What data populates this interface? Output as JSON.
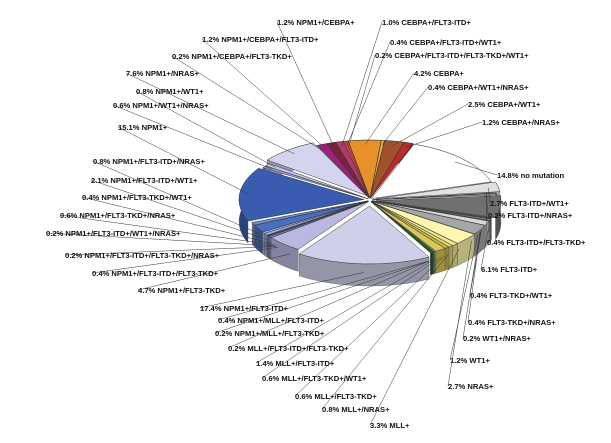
{
  "chart_data": {
    "type": "pie",
    "title": "",
    "slices": [
      {
        "label": "1.2% NPM1+/CEBPA+",
        "value": 1.2,
        "color": "#7a2238"
      },
      {
        "label": "1.0% CEBPA+/FLT3-ITD+",
        "value": 1.0,
        "color": "#b03a6a"
      },
      {
        "label": "0.4% CEBPA+/FLT3-ITD+/WT1+",
        "value": 0.4,
        "color": "#d23f4f"
      },
      {
        "label": "0.2% CEBPA+/FLT3-ITD+/FLT3-TKD+/WT1+",
        "value": 0.2,
        "color": "#e86a2e"
      },
      {
        "label": "4.2% CEBPA+",
        "value": 4.2,
        "color": "#e8902a"
      },
      {
        "label": "0.4% CEBPA+/WT1+/NRAS+",
        "value": 0.4,
        "color": "#f2b03a"
      },
      {
        "label": "2.5% CEBPA+/WT1+",
        "value": 2.5,
        "color": "#a0522d"
      },
      {
        "label": "1.2% CEBPA+/NRAS+",
        "value": 1.2,
        "color": "#c0282a"
      },
      {
        "label": "14.8% no mutation",
        "value": 14.8,
        "color": "#ffffff"
      },
      {
        "label": "2.7% FLT3-ITD+/WT1+",
        "value": 2.7,
        "color": "#e0e0e0"
      },
      {
        "label": "0.2% FLT3-ITD+/NRAS+",
        "value": 0.2,
        "color": "#bdbdbd"
      },
      {
        "label": "0.4% FLT3-ITD+/FLT3-TKD+",
        "value": 0.4,
        "color": "#9e9e9e"
      },
      {
        "label": "6.1% FLT3-ITD+",
        "value": 6.1,
        "color": "#707070"
      },
      {
        "label": "0.4% FLT3-TKD+/WT1+",
        "value": 0.4,
        "color": "#4a4a4a"
      },
      {
        "label": "0.4% FLT3-TKD+/NRAS+",
        "value": 0.4,
        "color": "#8c8c8c"
      },
      {
        "label": "0.2% WT1+/NRAS+",
        "value": 0.2,
        "color": "#b5b5b5"
      },
      {
        "label": "1.2% WT1+",
        "value": 1.2,
        "color": "#d9d9d9"
      },
      {
        "label": "2.7% NRAS+",
        "value": 2.7,
        "color": "#a6a6a6"
      },
      {
        "label": "3.3% MLL+",
        "value": 3.3,
        "color": "#fff7b0"
      },
      {
        "label": "0.8% MLL+/NRAS+",
        "value": 0.8,
        "color": "#f0e68c"
      },
      {
        "label": "0.6% MLL+/FLT3-TKD+",
        "value": 0.6,
        "color": "#e6d96a"
      },
      {
        "label": "0.6% MLL+/FLT3-TKD+/WT1+",
        "value": 0.6,
        "color": "#c8b84a"
      },
      {
        "label": "1.4% MLL+/FLT3-ITD+",
        "value": 1.4,
        "color": "#dcc85a"
      },
      {
        "label": "0.2% MLL+/FLT3-ITD+/FLT3-TKD+",
        "value": 0.2,
        "color": "#8fbc5a"
      },
      {
        "label": "0.2% NPM1+/MLL+/FLT3-TKD+",
        "value": 0.2,
        "color": "#2e7d32"
      },
      {
        "label": "0.4% NPM1+/MLL+/FLT3-ITD+",
        "value": 0.4,
        "color": "#1b5e20"
      },
      {
        "label": "17.4% NPM1+/FLT3-ITD+",
        "value": 17.4,
        "color": "#cfcfea"
      },
      {
        "label": "4.7% NPM1+/FLT3-TKD+",
        "value": 4.7,
        "color": "#b8b8e0"
      },
      {
        "label": "0.4% NPM1+/FLT3-ITD+/FLT3-TKD+",
        "value": 0.4,
        "color": "#8080c0"
      },
      {
        "label": "0.2% NPM1+/FLT3-ITD+/FLT3-TKD+/NRAS+",
        "value": 0.2,
        "color": "#6a6ab0"
      },
      {
        "label": "0.2% NPM1+/FLT3-ITD+/WT1+/NRAS+",
        "value": 0.2,
        "color": "#5060a8"
      },
      {
        "label": "0.6% NPM1+/FLT3-TKD+/NRAS+",
        "value": 0.6,
        "color": "#9ab0e0"
      },
      {
        "label": "0.4% NPM1+/FLT3-TKD+/WT1+",
        "value": 0.4,
        "color": "#a8c0f0"
      },
      {
        "label": "2.1% NPM1+/FLT3-ITD+/WT1+",
        "value": 2.1,
        "color": "#4a6ec0"
      },
      {
        "label": "0.8% NPM1+/FLT3-ITD+/NRAS+",
        "value": 0.8,
        "color": "#6a8ad0"
      },
      {
        "label": "15.1% NPM1+",
        "value": 15.1,
        "color": "#3a5cb0"
      },
      {
        "label": "0.6% NPM1+/WT1+/NRAS+",
        "value": 0.6,
        "color": "#8aa0d8"
      },
      {
        "label": "0.8% NPM1+/WT1+",
        "value": 0.8,
        "color": "#bcc8ec"
      },
      {
        "label": "7.6% NPM1+/NRAS+",
        "value": 7.6,
        "color": "#d4d4ee"
      },
      {
        "label": "0.2% NPM1+/CEBPA+/FLT3-TKD+",
        "value": 0.2,
        "color": "#d060a0"
      },
      {
        "label": "1.2% NPM1+/CEBPA+/FLT3-ITD+",
        "value": 1.2,
        "color": "#a02080"
      }
    ]
  }
}
